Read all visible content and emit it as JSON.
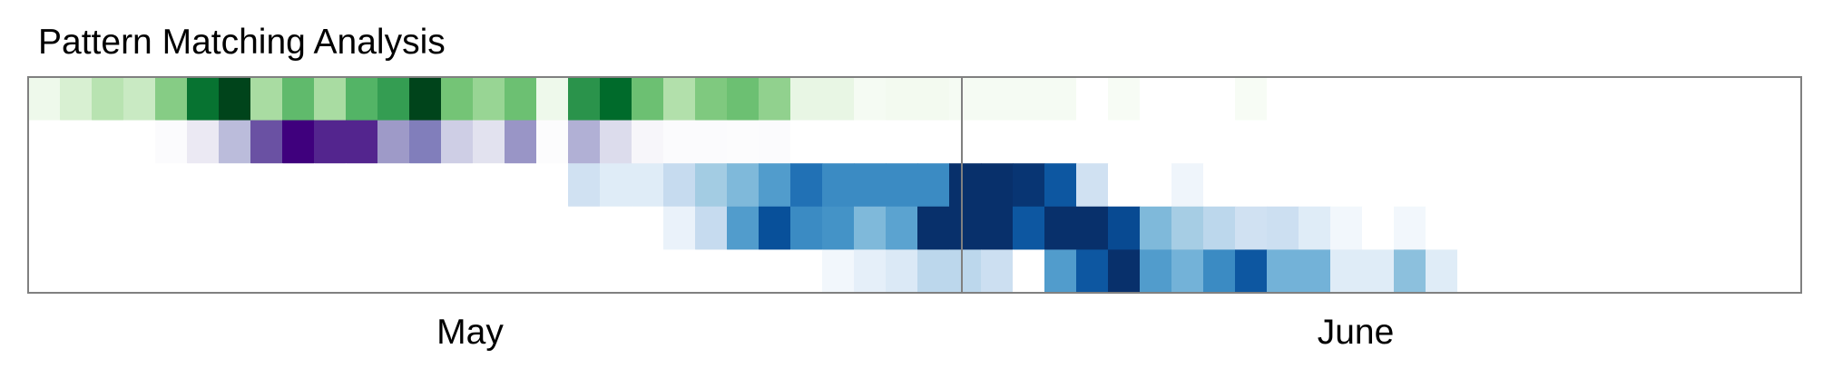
{
  "chart_data": {
    "type": "heatmap",
    "title": "Pattern Matching Analysis",
    "xlabel": "",
    "ylabel": "",
    "x_tick_labels": [
      "May",
      "June"
    ],
    "month_boundary_after_column": 29,
    "n_columns": 57,
    "grid": false,
    "row_colormaps": [
      "Greens",
      "Purples",
      "Blues",
      "Blues",
      "Blues"
    ],
    "intensity_scale": [
      0,
      1
    ],
    "rows": [
      [
        0.08,
        0.18,
        0.3,
        0.24,
        0.45,
        0.85,
        1.0,
        0.35,
        0.55,
        0.35,
        0.58,
        0.68,
        1.0,
        0.5,
        0.4,
        0.52,
        0.08,
        0.72,
        0.88,
        0.52,
        0.32,
        0.47,
        0.52,
        0.42,
        0.11,
        0.11,
        0.05,
        0.06,
        0.06,
        0.05,
        0.05,
        0.05,
        0.05,
        0.0,
        0.04,
        0.0,
        0.0,
        0.0,
        0.04,
        0.0,
        0.0,
        0.0,
        0.0,
        0.0,
        0.0,
        0.0,
        0.0,
        0.0,
        0.0,
        0.0,
        0.0,
        0.0,
        0.0,
        0.0,
        0.0,
        0.0,
        0.0
      ],
      [
        0.0,
        0.0,
        0.0,
        0.0,
        0.03,
        0.15,
        0.38,
        0.75,
        1.0,
        0.88,
        0.88,
        0.5,
        0.62,
        0.3,
        0.2,
        0.52,
        0.02,
        0.42,
        0.24,
        0.06,
        0.03,
        0.03,
        0.02,
        0.03,
        0.0,
        0.0,
        0.0,
        0.0,
        0.0,
        0.0,
        0.0,
        0.0,
        0.0,
        0.0,
        0.0,
        0.0,
        0.0,
        0.0,
        0.0,
        0.0,
        0.0,
        0.0,
        0.0,
        0.0,
        0.0,
        0.0,
        0.0,
        0.0,
        0.0,
        0.0,
        0.0,
        0.0,
        0.0,
        0.0,
        0.0,
        0.0,
        0.0
      ],
      [
        0.0,
        0.0,
        0.0,
        0.0,
        0.0,
        0.0,
        0.0,
        0.0,
        0.0,
        0.0,
        0.0,
        0.0,
        0.0,
        0.0,
        0.0,
        0.0,
        0.0,
        0.2,
        0.12,
        0.12,
        0.25,
        0.36,
        0.45,
        0.58,
        0.75,
        0.65,
        0.65,
        0.65,
        0.65,
        1.0,
        1.0,
        0.98,
        0.85,
        0.2,
        0.0,
        0.0,
        0.06,
        0.0,
        0.0,
        0.0,
        0.0,
        0.0,
        0.0,
        0.0,
        0.0,
        0.0,
        0.0,
        0.0,
        0.0,
        0.0,
        0.0,
        0.0,
        0.0,
        0.0,
        0.0,
        0.0,
        0.0
      ],
      [
        0.0,
        0.0,
        0.0,
        0.0,
        0.0,
        0.0,
        0.0,
        0.0,
        0.0,
        0.0,
        0.0,
        0.0,
        0.0,
        0.0,
        0.0,
        0.0,
        0.0,
        0.0,
        0.0,
        0.0,
        0.08,
        0.25,
        0.58,
        0.88,
        0.65,
        0.62,
        0.45,
        0.55,
        1.0,
        1.0,
        1.0,
        0.85,
        1.0,
        1.0,
        0.9,
        0.45,
        0.35,
        0.28,
        0.2,
        0.22,
        0.12,
        0.05,
        0.0,
        0.05,
        0.0,
        0.0,
        0.0,
        0.0,
        0.0,
        0.0,
        0.0,
        0.0,
        0.0,
        0.0,
        0.0,
        0.0,
        0.0
      ],
      [
        0.0,
        0.0,
        0.0,
        0.0,
        0.0,
        0.0,
        0.0,
        0.0,
        0.0,
        0.0,
        0.0,
        0.0,
        0.0,
        0.0,
        0.0,
        0.0,
        0.0,
        0.0,
        0.0,
        0.0,
        0.0,
        0.0,
        0.0,
        0.0,
        0.0,
        0.05,
        0.1,
        0.14,
        0.28,
        0.28,
        0.22,
        0.0,
        0.58,
        0.85,
        1.0,
        0.58,
        0.48,
        0.65,
        0.85,
        0.48,
        0.48,
        0.12,
        0.12,
        0.42,
        0.12,
        0.0,
        0.0,
        0.0,
        0.0,
        0.0,
        0.0,
        0.0,
        0.0,
        0.0,
        0.0,
        0.0,
        0.0
      ]
    ]
  }
}
